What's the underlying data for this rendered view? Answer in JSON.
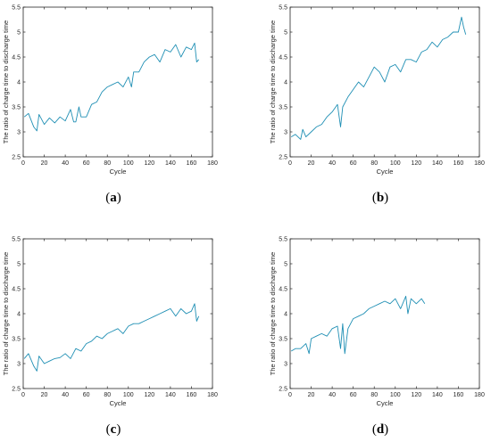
{
  "figure": {
    "captions": [
      {
        "open": "(",
        "letter": "a",
        "close": ")"
      },
      {
        "open": "(",
        "letter": "b",
        "close": ")"
      },
      {
        "open": "(",
        "letter": "c",
        "close": ")"
      },
      {
        "open": "(",
        "letter": "d",
        "close": ")"
      }
    ]
  },
  "colors": {
    "series": "#1f8fb4",
    "axis": "#262626"
  },
  "chart_data": [
    {
      "type": "line",
      "xlabel": "Cycle",
      "ylabel": "The ratio of charge time to discharge time",
      "xlim": [
        0,
        180
      ],
      "ylim": [
        2.5,
        5.5
      ],
      "xticks": [
        0,
        20,
        40,
        60,
        80,
        100,
        120,
        140,
        160,
        180
      ],
      "yticks": [
        2.5,
        3,
        3.5,
        4,
        4.5,
        5,
        5.5
      ],
      "grid": false,
      "x": [
        1,
        5,
        10,
        13,
        15,
        20,
        25,
        30,
        35,
        40,
        45,
        48,
        50,
        53,
        55,
        60,
        65,
        70,
        75,
        80,
        85,
        90,
        95,
        100,
        103,
        105,
        110,
        115,
        120,
        125,
        130,
        135,
        140,
        145,
        150,
        155,
        160,
        163,
        165,
        167
      ],
      "values": [
        3.3,
        3.37,
        3.1,
        3.02,
        3.35,
        3.15,
        3.28,
        3.18,
        3.3,
        3.22,
        3.45,
        3.2,
        3.2,
        3.5,
        3.3,
        3.3,
        3.55,
        3.6,
        3.8,
        3.9,
        3.95,
        4.0,
        3.9,
        4.1,
        3.9,
        4.2,
        4.2,
        4.4,
        4.5,
        4.55,
        4.4,
        4.65,
        4.6,
        4.75,
        4.5,
        4.7,
        4.65,
        4.78,
        4.4,
        4.45
      ]
    },
    {
      "type": "line",
      "xlabel": "Cycle",
      "ylabel": "The ratio of charge time to discharge time",
      "xlim": [
        0,
        180
      ],
      "ylim": [
        2.5,
        5.5
      ],
      "xticks": [
        0,
        20,
        40,
        60,
        80,
        100,
        120,
        140,
        160,
        180
      ],
      "yticks": [
        2.5,
        3,
        3.5,
        4,
        4.5,
        5,
        5.5
      ],
      "grid": false,
      "x": [
        1,
        5,
        10,
        12,
        15,
        20,
        25,
        30,
        35,
        40,
        45,
        48,
        50,
        55,
        60,
        65,
        70,
        75,
        80,
        85,
        90,
        95,
        100,
        105,
        110,
        115,
        120,
        125,
        130,
        135,
        140,
        145,
        150,
        155,
        160,
        163,
        165,
        167
      ],
      "values": [
        2.9,
        2.95,
        2.85,
        3.05,
        2.9,
        3.0,
        3.1,
        3.15,
        3.3,
        3.4,
        3.55,
        3.1,
        3.5,
        3.7,
        3.85,
        4.0,
        3.9,
        4.1,
        4.3,
        4.2,
        4.0,
        4.3,
        4.35,
        4.2,
        4.45,
        4.45,
        4.4,
        4.6,
        4.65,
        4.8,
        4.7,
        4.85,
        4.9,
        5.0,
        5.0,
        5.3,
        5.1,
        4.95
      ]
    },
    {
      "type": "line",
      "xlabel": "Cycle",
      "ylabel": "The ratio of charge time to discharge time",
      "xlim": [
        0,
        180
      ],
      "ylim": [
        2.5,
        5.5
      ],
      "xticks": [
        0,
        20,
        40,
        60,
        80,
        100,
        120,
        140,
        160,
        180
      ],
      "yticks": [
        2.5,
        3,
        3.5,
        4,
        4.5,
        5,
        5.5
      ],
      "grid": false,
      "x": [
        1,
        5,
        10,
        13,
        15,
        20,
        25,
        30,
        35,
        40,
        45,
        50,
        55,
        60,
        65,
        70,
        75,
        80,
        85,
        90,
        95,
        100,
        105,
        110,
        115,
        120,
        125,
        130,
        135,
        140,
        145,
        150,
        155,
        160,
        163,
        165,
        167
      ],
      "values": [
        3.1,
        3.2,
        2.95,
        2.85,
        3.15,
        3.0,
        3.05,
        3.1,
        3.12,
        3.2,
        3.1,
        3.3,
        3.25,
        3.4,
        3.45,
        3.55,
        3.5,
        3.6,
        3.65,
        3.7,
        3.6,
        3.75,
        3.8,
        3.8,
        3.85,
        3.9,
        3.95,
        4.0,
        4.05,
        4.1,
        3.95,
        4.1,
        4.0,
        4.05,
        4.2,
        3.85,
        3.95
      ]
    },
    {
      "type": "line",
      "xlabel": "Cycle",
      "ylabel": "The ratio of charge time to discharge time",
      "xlim": [
        0,
        180
      ],
      "ylim": [
        2.5,
        5.5
      ],
      "xticks": [
        0,
        20,
        40,
        60,
        80,
        100,
        120,
        140,
        160,
        180
      ],
      "yticks": [
        2.5,
        3,
        3.5,
        4,
        4.5,
        5,
        5.5
      ],
      "grid": false,
      "x": [
        1,
        5,
        10,
        15,
        18,
        20,
        25,
        30,
        35,
        40,
        45,
        48,
        50,
        52,
        55,
        60,
        65,
        70,
        75,
        80,
        85,
        90,
        95,
        100,
        105,
        110,
        112,
        115,
        120,
        125,
        128
      ],
      "values": [
        3.25,
        3.3,
        3.3,
        3.4,
        3.2,
        3.5,
        3.55,
        3.6,
        3.55,
        3.7,
        3.75,
        3.3,
        3.8,
        3.2,
        3.7,
        3.9,
        3.95,
        4.0,
        4.1,
        4.15,
        4.2,
        4.25,
        4.2,
        4.3,
        4.1,
        4.35,
        4.0,
        4.3,
        4.2,
        4.3,
        4.2
      ]
    }
  ]
}
